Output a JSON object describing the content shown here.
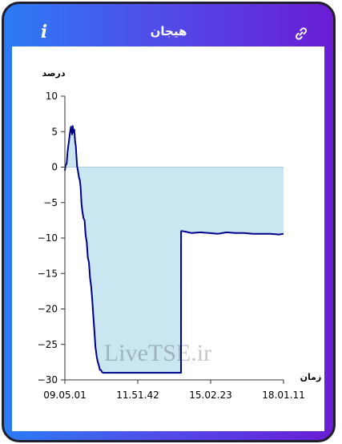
{
  "header": {
    "title": "هیجان",
    "info_label": "i"
  },
  "icons": {
    "info": "info-icon",
    "link": "link-icon"
  },
  "colors": {
    "frame_gradient_start": "#2b7bf6",
    "frame_gradient_end": "#6a1dd4",
    "line": "#00008b",
    "area_fill": "#c9e6f1",
    "zero_line": "#a9cfe0"
  },
  "watermark": "LiveTSE.ir",
  "chart_data": {
    "type": "area",
    "title": "",
    "ylabel": "درصد",
    "xlabel": "زمان",
    "ylim": [
      -30,
      10
    ],
    "yticks": [
      10,
      5,
      0,
      -5,
      -10,
      -15,
      -20,
      -25,
      -30
    ],
    "ytick_labels": [
      "10",
      "5",
      "0",
      "−5",
      "−10",
      "−15",
      "−20",
      "−25",
      "−30"
    ],
    "xticks": [
      "09.05.01",
      "11.51.42",
      "15.02.23",
      "18.01.11"
    ],
    "grid": false,
    "legend": "none",
    "series": [
      {
        "x": [
          0,
          0.3,
          0.8,
          1.3,
          1.8,
          2.3,
          2.8,
          3.3,
          3.6,
          3.9,
          4.3,
          4.7,
          5.0,
          5.3,
          5.6,
          6.0,
          6.4,
          6.8,
          7.2,
          7.6,
          8.0,
          8.5,
          9.0,
          9.5,
          10.0,
          10.5,
          11.0,
          11.5,
          12.0,
          12.5,
          13.0,
          13.5,
          14.0,
          14.5,
          15.0,
          15.5,
          16.0,
          16.5,
          17.0,
          17.5,
          18.0,
          18.5,
          19.0,
          19.5,
          20.0,
          20.5,
          21.0,
          21.5,
          22.0,
          22.5,
          23.0,
          23.2,
          23.5,
          24.0,
          25.0,
          30.0,
          35.0,
          40.0,
          45.0,
          50.0,
          53.1,
          53.15,
          53.3,
          55.0,
          58.0,
          62.0,
          66.0,
          70.0,
          74.0,
          78.0,
          82.0,
          86.0,
          90.0,
          94.0,
          98.0,
          100.0
        ],
        "y": [
          -0.5,
          0.2,
          0.5,
          2.3,
          3.5,
          4.8,
          5.7,
          4.6,
          5.8,
          4.9,
          5.3,
          3.6,
          2.9,
          1.4,
          0.1,
          -0.6,
          -1.4,
          -1.8,
          -2.9,
          -5.1,
          -6.2,
          -7.2,
          -7.5,
          -9.6,
          -10.6,
          -12.8,
          -13.4,
          -15.6,
          -16.8,
          -18.6,
          -21.0,
          -23.2,
          -25.4,
          -26.6,
          -27.4,
          -27.9,
          -28.6,
          -28.6,
          -28.9,
          -29.0,
          -29.0,
          -29.0,
          -29.0,
          -29.0,
          -29.0,
          -29.0,
          -29.0,
          -29.0,
          -29.0,
          -29.0,
          -29.0,
          -29.0,
          -29.0,
          -29.0,
          -29.0,
          -29.0,
          -29.0,
          -29.0,
          -29.0,
          -29.0,
          -29.0,
          -9.1,
          -9.0,
          -9.1,
          -9.3,
          -9.2,
          -9.3,
          -9.4,
          -9.2,
          -9.3,
          -9.3,
          -9.4,
          -9.4,
          -9.4,
          -9.5,
          -9.4
        ]
      }
    ]
  }
}
